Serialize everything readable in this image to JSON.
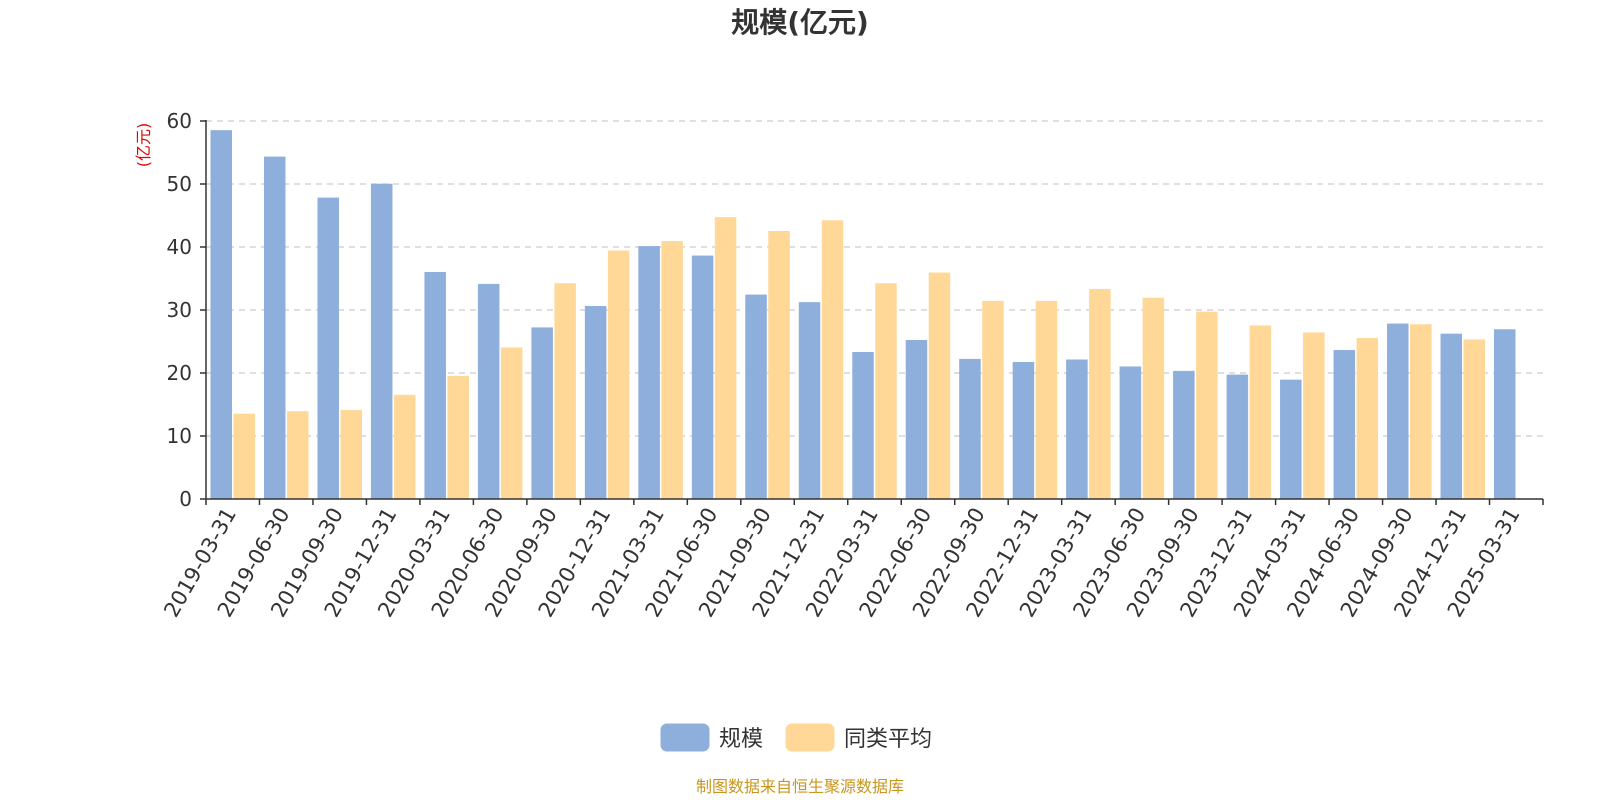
{
  "chart_data": {
    "type": "bar",
    "title": "规模(亿元)",
    "unit_label": "(亿元)",
    "source": "制图数据来自恒生聚源数据库",
    "categories": [
      "2019-03-31",
      "2019-06-30",
      "2019-09-30",
      "2019-12-31",
      "2020-03-31",
      "2020-06-30",
      "2020-09-30",
      "2020-12-31",
      "2021-03-31",
      "2021-06-30",
      "2021-09-30",
      "2021-12-31",
      "2022-03-31",
      "2022-06-30",
      "2022-09-30",
      "2022-12-31",
      "2023-03-31",
      "2023-06-30",
      "2023-09-30",
      "2023-12-31",
      "2024-03-31",
      "2024-06-30",
      "2024-09-30",
      "2024-12-31",
      "2025-03-31"
    ],
    "series": [
      {
        "name": "规模",
        "color": "#8eaedb",
        "values": [
          58.5,
          54.3,
          47.8,
          50.0,
          36.0,
          34.1,
          27.2,
          30.6,
          40.1,
          38.6,
          32.4,
          31.2,
          23.3,
          25.2,
          22.2,
          21.7,
          22.1,
          21.0,
          20.3,
          19.7,
          18.9,
          23.6,
          27.8,
          26.2,
          26.9
        ]
      },
      {
        "name": "同类平均",
        "color": "#ffd898",
        "values": [
          13.5,
          13.9,
          14.1,
          16.5,
          19.5,
          24.0,
          34.2,
          39.4,
          40.9,
          44.7,
          42.5,
          44.2,
          34.2,
          35.9,
          31.4,
          31.4,
          33.3,
          31.9,
          29.7,
          27.5,
          26.4,
          25.5,
          27.7,
          25.3,
          null
        ]
      }
    ],
    "ylim": [
      0,
      60
    ],
    "yticks": [
      0,
      10,
      20,
      30,
      40,
      50,
      60
    ],
    "grid": true,
    "legend": "bottom-center"
  }
}
